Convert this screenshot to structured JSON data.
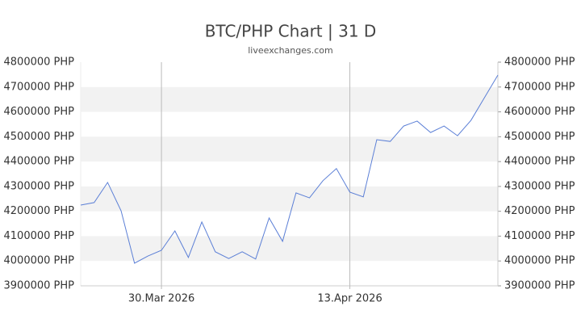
{
  "chart_data": {
    "type": "line",
    "title": "BTC/PHP Chart | 31 D",
    "subtitle": "liveexchanges.com",
    "categories": [
      null,
      null,
      null,
      null,
      null,
      null,
      "30.Mar 2026",
      null,
      null,
      null,
      null,
      null,
      null,
      null,
      null,
      null,
      null,
      null,
      null,
      null,
      "13.Apr 2026",
      null,
      null,
      null,
      null,
      null,
      null,
      null,
      null,
      null,
      null,
      null
    ],
    "values": [
      4225000,
      4235000,
      4316000,
      4202000,
      3991000,
      4020000,
      4043000,
      4121000,
      4014000,
      4157000,
      4037000,
      4010000,
      4037000,
      4008000,
      4173000,
      4079000,
      4274000,
      4254000,
      4323000,
      4372000,
      4277000,
      4258000,
      4488000,
      4481000,
      4543000,
      4563000,
      4517000,
      4543000,
      4504000,
      4566000,
      4657000,
      4748000
    ],
    "color": "#5b7fd6",
    "ylim": [
      3900000,
      4800000
    ],
    "yticks": [
      {
        "value": 3900000,
        "label": "3900000 PHP"
      },
      {
        "value": 4000000,
        "label": "4000000 PHP"
      },
      {
        "value": 4100000,
        "label": "4100000 PHP"
      },
      {
        "value": 4200000,
        "label": "4200000 PHP"
      },
      {
        "value": 4300000,
        "label": "4300000 PHP"
      },
      {
        "value": 4400000,
        "label": "4400000 PHP"
      },
      {
        "value": 4500000,
        "label": "4500000 PHP"
      },
      {
        "value": 4600000,
        "label": "4600000 PHP"
      },
      {
        "value": 4700000,
        "label": "4700000 PHP"
      },
      {
        "value": 4800000,
        "label": "4800000 PHP"
      }
    ],
    "grid": "bands"
  }
}
